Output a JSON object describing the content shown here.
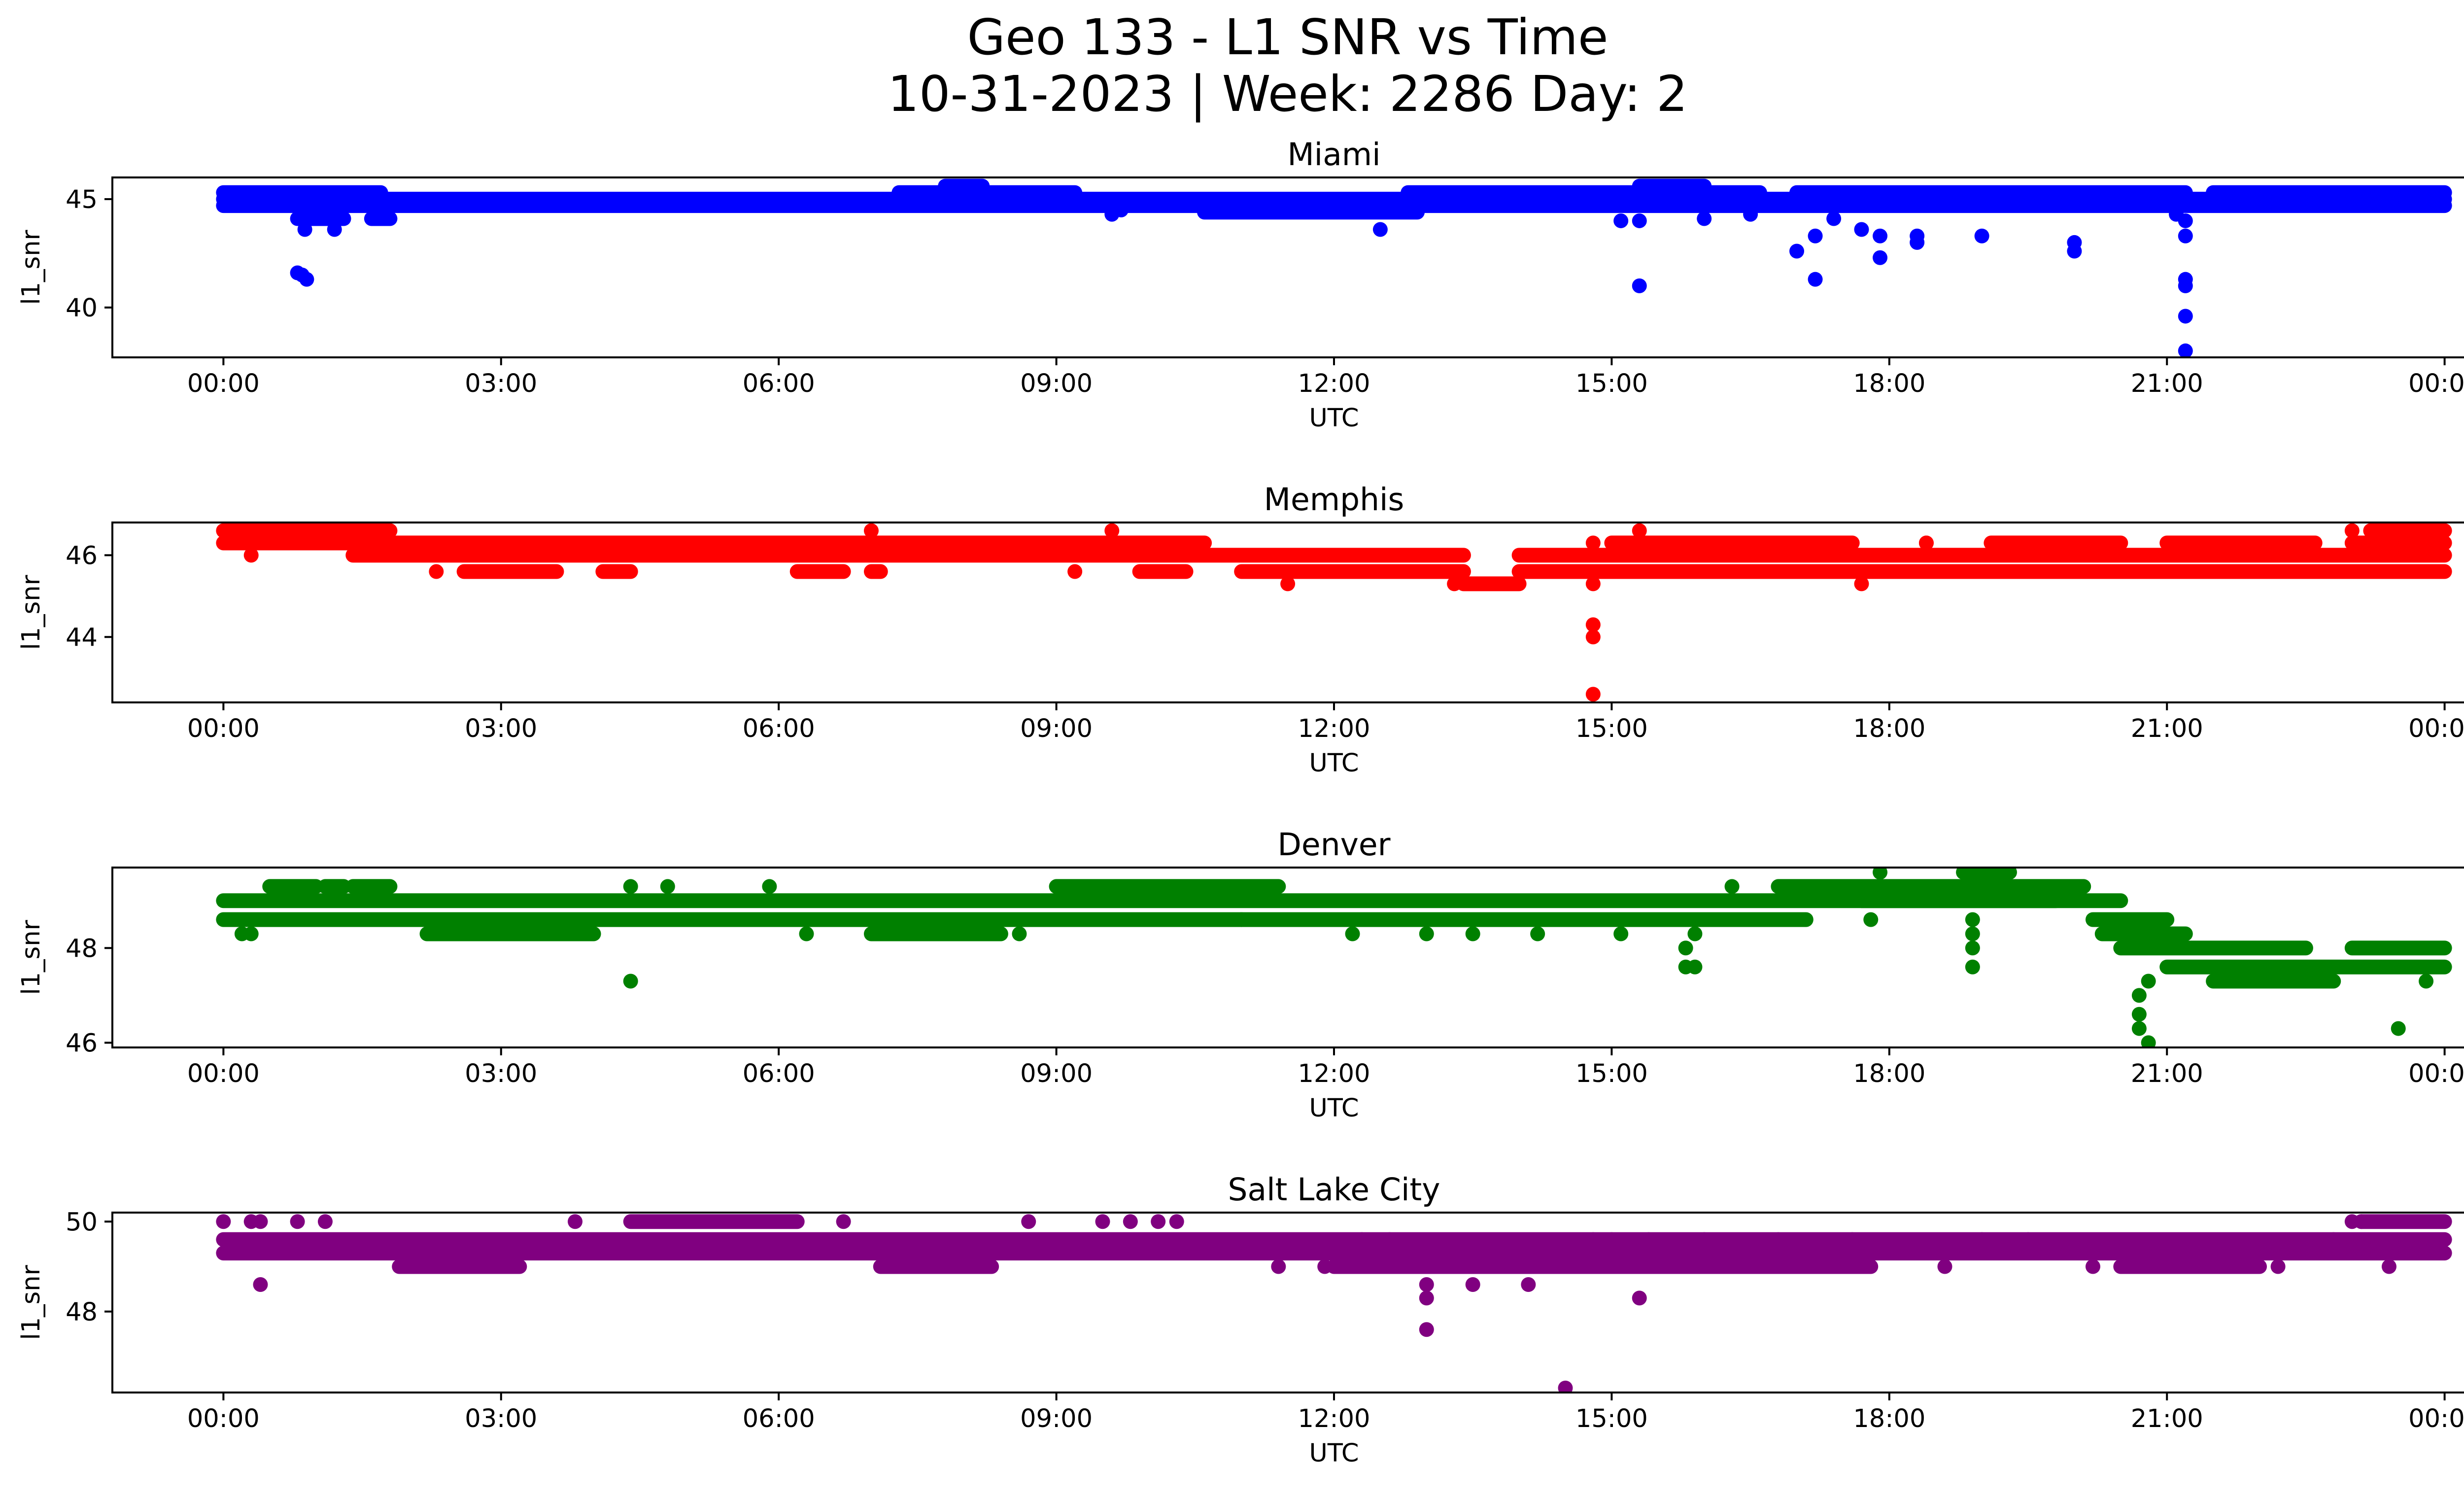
{
  "chart_data": {
    "type": "scatter",
    "title": "Geo 133 - L1 SNR vs Time",
    "subtitle": "10-31-2023 | Week: 2286 Day: 2",
    "x_tick_labels": [
      "00:00",
      "03:00",
      "06:00",
      "09:00",
      "12:00",
      "15:00",
      "18:00",
      "21:00",
      "00:00"
    ],
    "xlabel": "UTC",
    "ylabel": "l1_snr",
    "xlim_hours": [
      -1.2,
      25.2
    ],
    "panels": [
      {
        "title": "Miami",
        "color": "#0000ff",
        "ylim": [
          37.7,
          46.0
        ],
        "yticks": [
          40,
          45
        ],
        "series": [
          {
            "x": [
              0.0,
              24.0
            ],
            "y": [
              45.0,
              45.0
            ]
          },
          {
            "x": [
              0.0,
              24.0
            ],
            "y": [
              44.7,
              44.7
            ]
          },
          {
            "x": [
              0.0,
              1.7
            ],
            "y": [
              45.3,
              45.3
            ]
          },
          {
            "x": [
              7.3,
              9.2
            ],
            "y": [
              45.3,
              45.3
            ]
          },
          {
            "x": [
              12.8,
              16.6
            ],
            "y": [
              45.3,
              45.3
            ]
          },
          {
            "x": [
              17.0,
              21.2
            ],
            "y": [
              45.3,
              45.3
            ]
          },
          {
            "x": [
              21.5,
              24.0
            ],
            "y": [
              45.3,
              45.3
            ]
          },
          {
            "x": [
              10.6,
              12.9
            ],
            "y": [
              44.4,
              44.4
            ]
          },
          {
            "x": [
              0.8,
              1.3
            ],
            "y": [
              44.1,
              44.1
            ]
          },
          {
            "x": [
              1.6,
              1.8
            ],
            "y": [
              44.1,
              44.1
            ]
          },
          {
            "x": [
              7.8,
              8.2
            ],
            "y": [
              45.6,
              45.6
            ]
          },
          {
            "x": [
              15.3,
              16.0
            ],
            "y": [
              45.6,
              45.6
            ]
          }
        ],
        "points": {
          "x": [
            0.8,
            0.85,
            0.9,
            0.88,
            1.2,
            9.6,
            9.7,
            12.5,
            15.1,
            15.3,
            15.3,
            16.0,
            16.5,
            17.0,
            17.2,
            17.2,
            17.4,
            17.7,
            17.9,
            17.9,
            18.3,
            18.3,
            19.0,
            20.0,
            20.0,
            21.1,
            21.2,
            21.2,
            21.2,
            21.2,
            21.2,
            21.2
          ],
          "y": [
            41.6,
            41.5,
            41.3,
            43.6,
            43.6,
            44.3,
            44.5,
            43.6,
            44.0,
            44.0,
            41.0,
            44.1,
            44.3,
            42.6,
            43.3,
            41.3,
            44.1,
            43.6,
            43.3,
            42.3,
            43.0,
            43.3,
            43.3,
            43.0,
            42.6,
            44.3,
            43.3,
            41.3,
            41.0,
            39.6,
            38.0,
            44.0
          ]
        }
      },
      {
        "title": "Memphis",
        "color": "#ff0000",
        "ylim": [
          42.4,
          46.8
        ],
        "yticks": [
          44,
          46
        ],
        "series": [
          {
            "x": [
              0.0,
              1.8
            ],
            "y": [
              46.6,
              46.6
            ]
          },
          {
            "x": [
              0.0,
              1.4
            ],
            "y": [
              46.3,
              46.3
            ]
          },
          {
            "x": [
              1.4,
              10.6
            ],
            "y": [
              46.3,
              46.3
            ]
          },
          {
            "x": [
              1.4,
              13.4
            ],
            "y": [
              46.0,
              46.0
            ]
          },
          {
            "x": [
              14.0,
              24.0
            ],
            "y": [
              46.0,
              46.0
            ]
          },
          {
            "x": [
              11.0,
              13.4
            ],
            "y": [
              45.6,
              45.6
            ]
          },
          {
            "x": [
              14.0,
              24.0
            ],
            "y": [
              45.6,
              45.6
            ]
          },
          {
            "x": [
              13.4,
              14.0
            ],
            "y": [
              45.3,
              45.3
            ]
          },
          {
            "x": [
              15.0,
              17.6
            ],
            "y": [
              46.3,
              46.3
            ]
          },
          {
            "x": [
              19.1,
              20.5
            ],
            "y": [
              46.3,
              46.3
            ]
          },
          {
            "x": [
              21.0,
              22.6
            ],
            "y": [
              46.3,
              46.3
            ]
          },
          {
            "x": [
              23.0,
              24.0
            ],
            "y": [
              46.3,
              46.3
            ]
          },
          {
            "x": [
              23.2,
              24.0
            ],
            "y": [
              46.6,
              46.6
            ]
          },
          {
            "x": [
              2.6,
              3.6
            ],
            "y": [
              45.6,
              45.6
            ]
          },
          {
            "x": [
              4.1,
              4.4
            ],
            "y": [
              45.6,
              45.6
            ]
          },
          {
            "x": [
              6.2,
              6.7
            ],
            "y": [
              45.6,
              45.6
            ]
          },
          {
            "x": [
              7.0,
              7.1
            ],
            "y": [
              45.6,
              45.6
            ]
          },
          {
            "x": [
              9.9,
              10.4
            ],
            "y": [
              45.6,
              45.6
            ]
          },
          {
            "x": [
              19.6,
              20.0
            ],
            "y": [
              45.6,
              45.6
            ]
          },
          {
            "x": [
              20.2,
              21.5
            ],
            "y": [
              45.6,
              45.6
            ]
          },
          {
            "x": [
              21.8,
              22.6
            ],
            "y": [
              45.6,
              45.6
            ]
          }
        ],
        "points": {
          "x": [
            0.3,
            2.3,
            7.0,
            9.2,
            9.6,
            11.5,
            13.3,
            14.8,
            14.8,
            14.8,
            14.8,
            14.8,
            15.3,
            17.7,
            18.4,
            18.4,
            23.0
          ],
          "y": [
            46.0,
            45.6,
            46.6,
            45.6,
            46.6,
            45.3,
            45.3,
            46.3,
            44.3,
            44.0,
            42.6,
            45.3,
            46.6,
            45.3,
            46.3,
            46.3,
            46.6
          ]
        }
      },
      {
        "title": "Denver",
        "color": "#008000",
        "ylim": [
          45.9,
          49.7
        ],
        "yticks": [
          46,
          48
        ],
        "series": [
          {
            "x": [
              0.0,
              20.5
            ],
            "y": [
              49.0,
              49.0
            ]
          },
          {
            "x": [
              0.0,
              17.1
            ],
            "y": [
              48.6,
              48.6
            ]
          },
          {
            "x": [
              9.0,
              11.4
            ],
            "y": [
              49.3,
              49.3
            ]
          },
          {
            "x": [
              16.8,
              20.1
            ],
            "y": [
              49.3,
              49.3
            ]
          },
          {
            "x": [
              17.7,
              19.8
            ],
            "y": [
              49.0,
              49.0
            ]
          },
          {
            "x": [
              2.2,
              4.0
            ],
            "y": [
              48.3,
              48.3
            ]
          },
          {
            "x": [
              7.0,
              8.4
            ],
            "y": [
              48.3,
              48.3
            ]
          },
          {
            "x": [
              20.2,
              21.0
            ],
            "y": [
              48.6,
              48.6
            ]
          },
          {
            "x": [
              20.3,
              21.2
            ],
            "y": [
              48.3,
              48.3
            ]
          },
          {
            "x": [
              20.5,
              22.5
            ],
            "y": [
              48.0,
              48.0
            ]
          },
          {
            "x": [
              23.0,
              24.0
            ],
            "y": [
              48.0,
              48.0
            ]
          },
          {
            "x": [
              21.0,
              24.0
            ],
            "y": [
              47.6,
              47.6
            ]
          },
          {
            "x": [
              21.5,
              22.8
            ],
            "y": [
              47.3,
              47.3
            ]
          },
          {
            "x": [
              0.5,
              1.0
            ],
            "y": [
              49.3,
              49.3
            ]
          },
          {
            "x": [
              1.1,
              1.3
            ],
            "y": [
              49.3,
              49.3
            ]
          },
          {
            "x": [
              1.4,
              1.8
            ],
            "y": [
              49.3,
              49.3
            ]
          },
          {
            "x": [
              18.8,
              19.3
            ],
            "y": [
              49.6,
              49.6
            ]
          }
        ],
        "points": {
          "x": [
            0.2,
            0.3,
            4.4,
            4.4,
            4.8,
            5.9,
            6.3,
            8.6,
            11.0,
            12.2,
            13.0,
            13.5,
            14.2,
            15.1,
            15.8,
            15.8,
            15.9,
            15.9,
            16.3,
            17.8,
            17.9,
            18.9,
            18.9,
            18.9,
            18.9,
            20.7,
            20.7,
            20.7,
            20.8,
            20.8,
            23.5,
            23.8
          ],
          "y": [
            48.3,
            48.3,
            47.3,
            49.3,
            49.3,
            49.3,
            48.3,
            48.3,
            48.6,
            48.3,
            48.3,
            48.3,
            48.3,
            48.3,
            48.0,
            47.6,
            48.3,
            47.6,
            49.3,
            48.6,
            49.6,
            48.6,
            48.3,
            48.0,
            47.6,
            47.0,
            46.6,
            46.3,
            46.0,
            47.3,
            46.3,
            47.3
          ]
        }
      },
      {
        "title": "Salt Lake City",
        "color": "#800080",
        "ylim": [
          46.2,
          50.2
        ],
        "yticks": [
          48,
          50
        ],
        "series": [
          {
            "x": [
              0.0,
              24.0
            ],
            "y": [
              49.6,
              49.6
            ]
          },
          {
            "x": [
              0.0,
              24.0
            ],
            "y": [
              49.3,
              49.3
            ]
          },
          {
            "x": [
              12.0,
              17.8
            ],
            "y": [
              49.0,
              49.0
            ]
          },
          {
            "x": [
              7.1,
              8.3
            ],
            "y": [
              49.0,
              49.0
            ]
          },
          {
            "x": [
              1.9,
              3.2
            ],
            "y": [
              49.0,
              49.0
            ]
          },
          {
            "x": [
              20.5,
              22.0
            ],
            "y": [
              49.0,
              49.0
            ]
          },
          {
            "x": [
              4.4,
              6.2
            ],
            "y": [
              50.0,
              50.0
            ]
          },
          {
            "x": [
              23.1,
              24.0
            ],
            "y": [
              50.0,
              50.0
            ]
          }
        ],
        "points": {
          "x": [
            0.0,
            0.3,
            0.4,
            0.4,
            0.8,
            1.1,
            3.8,
            6.7,
            8.7,
            9.5,
            9.8,
            10.1,
            10.3,
            11.4,
            11.9,
            12.3,
            12.6,
            13.0,
            13.0,
            13.0,
            13.4,
            13.5,
            14.0,
            14.1,
            14.5,
            14.8,
            15.0,
            15.3,
            15.4,
            16.0,
            16.8,
            17.6,
            18.6,
            19.0,
            19.5,
            20.2,
            22.2,
            22.8,
            23.0,
            23.1,
            23.4
          ],
          "y": [
            50.0,
            50.0,
            48.6,
            50.0,
            50.0,
            50.0,
            50.0,
            50.0,
            50.0,
            50.0,
            50.0,
            50.0,
            50.0,
            49.0,
            49.0,
            49.6,
            49.6,
            48.6,
            48.3,
            47.6,
            49.3,
            48.6,
            49.0,
            48.6,
            46.3,
            49.6,
            49.6,
            48.3,
            49.6,
            49.6,
            49.6,
            49.6,
            49.0,
            49.6,
            49.6,
            49.0,
            49.0,
            49.6,
            50.0,
            50.0,
            49.0
          ]
        }
      }
    ]
  }
}
